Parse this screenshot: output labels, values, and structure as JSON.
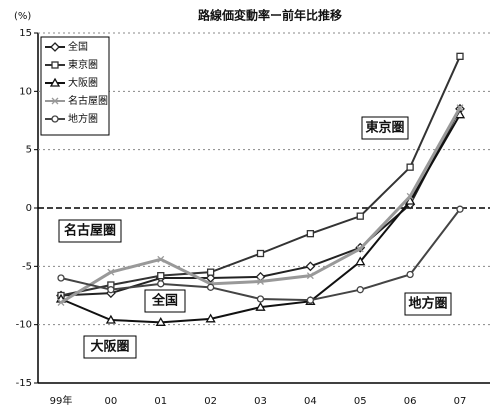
{
  "chart_data": {
    "type": "line",
    "title": "路線価変動率ー前年比推移",
    "y_label": "(%)",
    "categories": [
      "99年",
      "00",
      "01",
      "02",
      "03",
      "04",
      "05",
      "06",
      "07"
    ],
    "ylim": [
      -15,
      15
    ],
    "yticks": [
      -15,
      -10,
      -5,
      0,
      5,
      10,
      15
    ],
    "grid": true,
    "legend": "upper left",
    "series": [
      {
        "name": "全国",
        "color": "#222222",
        "marker": "diamond",
        "values": [
          -7.5,
          -7.3,
          -6.0,
          -6.0,
          -5.9,
          -5.0,
          -3.4,
          0.3,
          8.5
        ]
      },
      {
        "name": "東京圏",
        "color": "#333333",
        "marker": "square",
        "values": [
          -7.5,
          -6.6,
          -5.8,
          -5.5,
          -3.9,
          -2.2,
          -0.7,
          3.5,
          13.0
        ]
      },
      {
        "name": "大阪圏",
        "color": "#111111",
        "marker": "triangle",
        "values": [
          -7.8,
          -9.6,
          -9.8,
          -9.5,
          -8.5,
          -8.0,
          -4.6,
          0.6,
          8.0
        ]
      },
      {
        "name": "名古屋圏",
        "color": "#999999",
        "marker": "cross",
        "values": [
          -8.1,
          -5.5,
          -4.4,
          -6.5,
          -6.3,
          -5.8,
          -3.5,
          1.0,
          8.6
        ]
      },
      {
        "name": "地方圏",
        "color": "#444444",
        "marker": "circle",
        "values": [
          -6.0,
          -7.0,
          -6.5,
          -6.8,
          -7.8,
          -7.9,
          -7.0,
          -5.7,
          -0.1
        ]
      }
    ]
  }
}
